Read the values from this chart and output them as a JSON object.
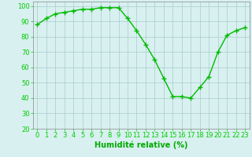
{
  "x": [
    0,
    1,
    2,
    3,
    4,
    5,
    6,
    7,
    8,
    9,
    10,
    11,
    12,
    13,
    14,
    15,
    16,
    17,
    18,
    19,
    20,
    21,
    22,
    23
  ],
  "y": [
    88,
    92,
    95,
    96,
    97,
    98,
    98,
    99,
    99,
    99,
    92,
    84,
    75,
    65,
    53,
    41,
    41,
    40,
    47,
    54,
    70,
    81,
    84,
    86
  ],
  "line_color": "#00bb00",
  "marker": "+",
  "marker_color": "#00bb00",
  "bg_color": "#d8f0f0",
  "grid_color": "#aacccc",
  "tick_color": "#00cc00",
  "label_color": "#00aa00",
  "xlabel": "Humidité relative (%)",
  "ylim": [
    20,
    103
  ],
  "yticks": [
    20,
    30,
    40,
    50,
    60,
    70,
    80,
    90,
    100
  ],
  "xlim": [
    -0.5,
    23.5
  ],
  "xticks": [
    0,
    1,
    2,
    3,
    4,
    5,
    6,
    7,
    8,
    9,
    10,
    11,
    12,
    13,
    14,
    15,
    16,
    17,
    18,
    19,
    20,
    21,
    22,
    23
  ],
  "xlabel_fontsize": 7,
  "tick_fontsize": 6,
  "line_width": 1.0,
  "marker_size": 4
}
